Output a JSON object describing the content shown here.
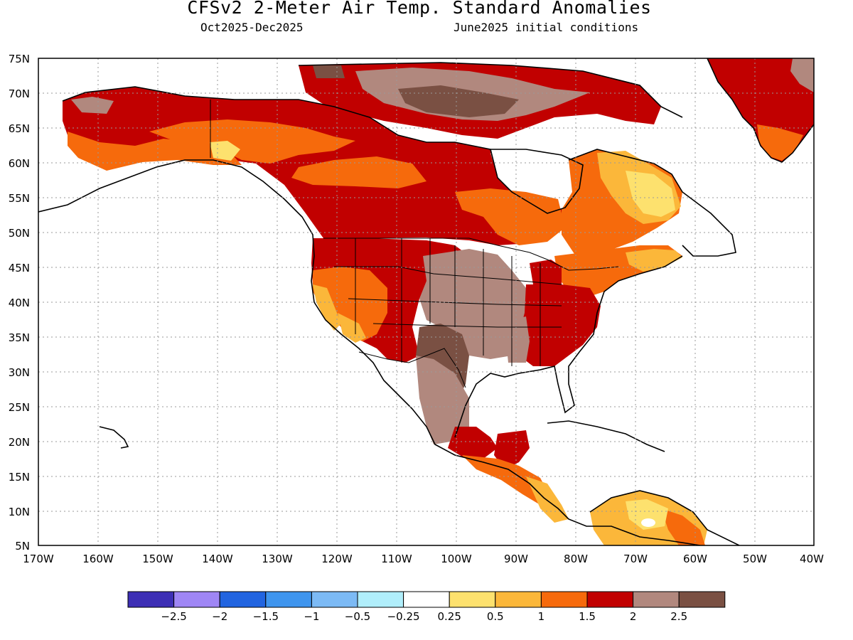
{
  "header": {
    "title": "CFSv2 2-Meter Air Temp. Standard Anomalies",
    "period": "Oct2025-Dec2025",
    "initial_conditions": "June2025 initial conditions"
  },
  "map": {
    "region": "North America",
    "gridlines": "dotted",
    "lat_labels": [
      "75N",
      "70N",
      "65N",
      "60N",
      "55N",
      "50N",
      "45N",
      "40N",
      "35N",
      "30N",
      "25N",
      "20N",
      "15N",
      "10N",
      "5N"
    ],
    "lon_labels": [
      "170W",
      "160W",
      "150W",
      "140W",
      "130W",
      "120W",
      "110W",
      "100W",
      "90W",
      "80W",
      "70W",
      "60W",
      "50W",
      "40W"
    ],
    "lat_range": [
      5,
      75
    ],
    "lon_range": [
      -170,
      -40
    ]
  },
  "colorbar": {
    "labels": [
      "-2.5",
      "-2",
      "-1.5",
      "-1",
      "-0.5",
      "-0.25",
      "0.25",
      "0.5",
      "1",
      "1.5",
      "2",
      "2.5"
    ],
    "colors": [
      "#3d2fb5",
      "#9f86f5",
      "#2164e0",
      "#3f95ee",
      "#7cbaf5",
      "#b0eefb",
      "#ffffff",
      "#fde16e",
      "#fbb73a",
      "#f66a0c",
      "#c10000",
      "#b1887e",
      "#7a5043"
    ]
  },
  "palette": {
    "land_outline": "#000000",
    "strong_warm": "#c10000",
    "warm": "#f66a0c",
    "light_warm": "#fbb73a",
    "pale_warm": "#fde16e",
    "very_warm": "#b1887e",
    "extreme_warm": "#7a5043"
  }
}
